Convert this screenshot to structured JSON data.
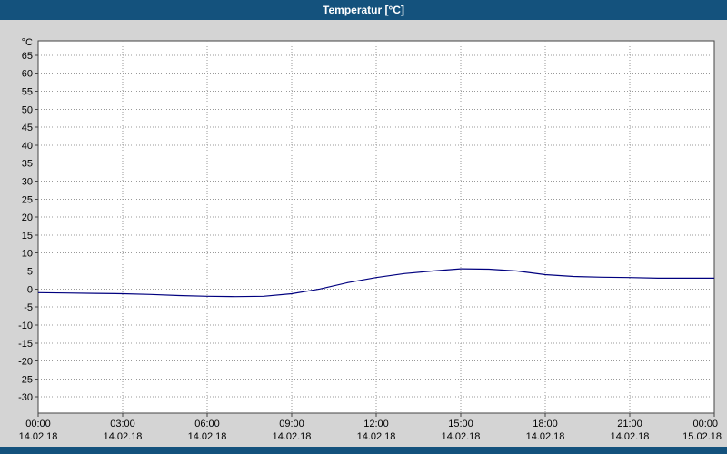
{
  "window": {
    "title": "Temperatur [°C]"
  },
  "colors": {
    "titlebar": "#14527d",
    "body_background": "#d4d4d4",
    "plot_background": "#ffffff",
    "plot_border": "#444444",
    "grid": "#999999",
    "line": "#00007f",
    "text": "#000000"
  },
  "chart_data": {
    "type": "line",
    "title": "Temperatur [°C]",
    "ylabel": "°C",
    "unit_label": "°C",
    "ylim": [
      -34.5,
      69
    ],
    "y_ticks": [
      65,
      60,
      55,
      50,
      45,
      40,
      35,
      30,
      25,
      20,
      15,
      10,
      5,
      0,
      -5,
      -10,
      -15,
      -20,
      -25,
      -30
    ],
    "x_range_hours": [
      0,
      24
    ],
    "x_ticks": [
      {
        "time": "00:00",
        "date": "14.02.18"
      },
      {
        "time": "03:00",
        "date": "14.02.18"
      },
      {
        "time": "06:00",
        "date": "14.02.18"
      },
      {
        "time": "09:00",
        "date": "14.02.18"
      },
      {
        "time": "12:00",
        "date": "14.02.18"
      },
      {
        "time": "15:00",
        "date": "14.02.18"
      },
      {
        "time": "18:00",
        "date": "14.02.18"
      },
      {
        "time": "21:00",
        "date": "14.02.18"
      },
      {
        "time": "00:00",
        "date": "15.02.18"
      }
    ],
    "grid": true,
    "legend": "none",
    "series": [
      {
        "name": "Temperatur",
        "color": "#00007f",
        "x_hours": [
          0,
          1,
          2,
          3,
          4,
          5,
          6,
          7,
          8,
          9,
          10,
          11,
          12,
          13,
          14,
          15,
          16,
          17,
          18,
          19,
          20,
          21,
          22,
          23,
          24
        ],
        "values": [
          -1.0,
          -1.1,
          -1.2,
          -1.3,
          -1.5,
          -1.8,
          -2.0,
          -2.1,
          -2.0,
          -1.3,
          0.0,
          1.8,
          3.2,
          4.3,
          5.0,
          5.6,
          5.5,
          5.0,
          4.0,
          3.5,
          3.3,
          3.2,
          3.0,
          3.0,
          3.0
        ]
      }
    ]
  }
}
